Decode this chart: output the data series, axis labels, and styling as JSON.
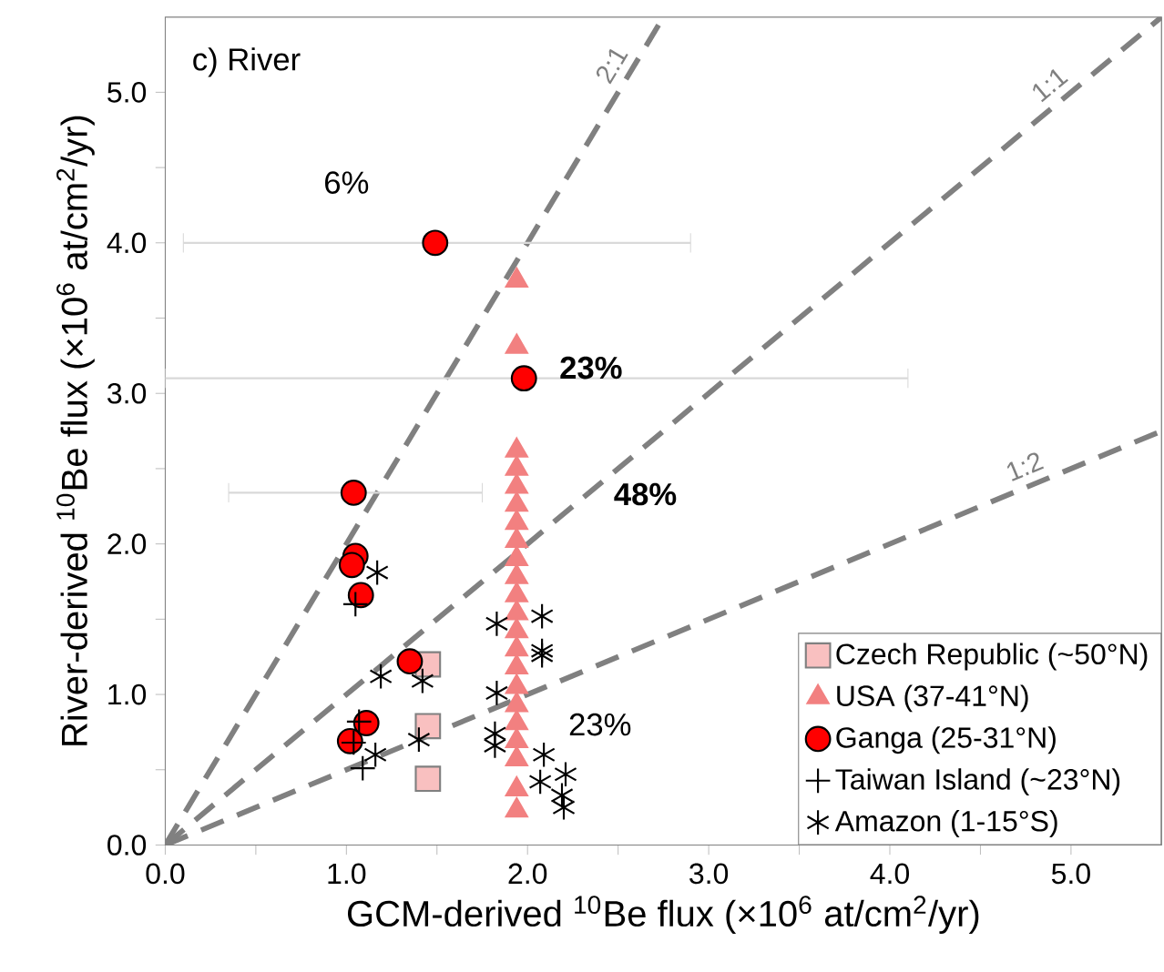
{
  "chart_data": {
    "type": "scatter",
    "xlabel": "GCM-derived $^{10}$Be flux (×10$^{6}$ at/cm$^{2}$/yr)",
    "ylabel": "River-derived $^{10}$Be flux (×10$^{6}$ at/cm$^{2}$/yr)",
    "annotations": [
      "c) River",
      "6%",
      "23%",
      "48%",
      "23%"
    ],
    "xlim": [
      0,
      5.5
    ],
    "ylim": [
      0,
      5.5
    ],
    "xticks": [
      {
        "value": 0,
        "label": "0.0"
      },
      {
        "value": 0.5,
        "label": null
      },
      {
        "value": 1,
        "label": "1.0"
      },
      {
        "value": 1.5,
        "label": null
      },
      {
        "value": 2,
        "label": "2.0"
      },
      {
        "value": 2.5,
        "label": null
      },
      {
        "value": 3,
        "label": "3.0"
      },
      {
        "value": 3.5,
        "label": null
      },
      {
        "value": 4,
        "label": "4.0"
      },
      {
        "value": 4.5,
        "label": null
      },
      {
        "value": 5,
        "label": "5.0"
      }
    ],
    "yticks": [
      {
        "value": 0,
        "label": "0.0"
      },
      {
        "value": 0.5,
        "label": null
      },
      {
        "value": 1,
        "label": "1.0"
      },
      {
        "value": 1.5,
        "label": null
      },
      {
        "value": 2,
        "label": "2.0"
      },
      {
        "value": 2.5,
        "label": null
      },
      {
        "value": 3,
        "label": "3.0"
      },
      {
        "value": 3.5,
        "label": null
      },
      {
        "value": 4,
        "label": "4.0"
      },
      {
        "value": 4.5,
        "label": null
      },
      {
        "value": 5,
        "label": "5.0"
      }
    ],
    "grid": false,
    "legend": "bottom right",
    "series": [
      {
        "name": "2:1",
        "type": "line",
        "color": "#808080",
        "line_style": "dashed",
        "marker": "none",
        "x": [
          0,
          2.75
        ],
        "values": [
          0,
          5.5
        ]
      },
      {
        "name": "1:1",
        "type": "line",
        "color": "#808080",
        "line_style": "dashed",
        "marker": "none",
        "x": [
          0,
          5.5
        ],
        "values": [
          0,
          5.5
        ]
      },
      {
        "name": "1:2",
        "type": "line",
        "color": "#808080",
        "line_style": "dashed",
        "marker": "none",
        "x": [
          0,
          5.5
        ],
        "values": [
          0,
          2.75
        ]
      },
      {
        "name": "Czech Republic (~50°N)",
        "color": "#f9c0c0",
        "marker": "square",
        "x": [
          1.45,
          1.45,
          1.45
        ],
        "values": [
          1.2,
          0.79,
          0.44
        ]
      },
      {
        "name": "USA (37-41°N)",
        "color": "#f28080",
        "marker": "triangle",
        "x": [
          1.94,
          1.94,
          1.94,
          1.94,
          1.94,
          1.94,
          1.94,
          1.94,
          1.94,
          1.94,
          1.94,
          1.94,
          1.94,
          1.94,
          1.94,
          1.94,
          1.94,
          1.94,
          1.94,
          1.94,
          1.94,
          1.94
        ],
        "values": [
          3.75,
          3.31,
          2.62,
          2.5,
          2.38,
          2.26,
          2.14,
          2.02,
          1.9,
          1.78,
          1.66,
          1.54,
          1.42,
          1.3,
          1.18,
          1.05,
          0.93,
          0.81,
          0.69,
          0.57,
          0.37,
          0.23
        ]
      },
      {
        "name": "Ganga (25-31°N)",
        "color": "#ff0000",
        "marker": "circle",
        "x": [
          1.49,
          1.98,
          1.04,
          1.05,
          1.03,
          1.08,
          1.35,
          1.11,
          1.02
        ],
        "values": [
          4.0,
          3.1,
          2.34,
          1.92,
          1.86,
          1.66,
          1.22,
          0.81,
          0.69
        ],
        "xerrors": [
          [
            0.1,
            2.9
          ],
          [
            0.0,
            4.1
          ],
          [
            0.35,
            1.75
          ],
          null,
          null,
          null,
          null,
          null,
          null
        ]
      },
      {
        "name": "Taiwan Island (~23°N)",
        "color": "#000000",
        "marker": "cross",
        "x": [
          1.05,
          1.07,
          1.04,
          1.09
        ],
        "values": [
          1.6,
          0.82,
          0.68,
          0.51
        ]
      },
      {
        "name": "Amazon (1-15°S)",
        "color": "#000000",
        "marker": "cross",
        "x": [
          1.17,
          1.19,
          1.42,
          1.4,
          1.16,
          1.83,
          1.83,
          1.82,
          1.82,
          2.08,
          2.08,
          2.08,
          2.09,
          2.07,
          2.21,
          2.19,
          2.2
        ],
        "values": [
          1.81,
          1.12,
          1.09,
          0.7,
          0.6,
          1.47,
          1.01,
          0.74,
          0.66,
          1.52,
          1.29,
          1.26,
          0.6,
          0.42,
          0.47,
          0.33,
          0.25
        ]
      }
    ]
  }
}
